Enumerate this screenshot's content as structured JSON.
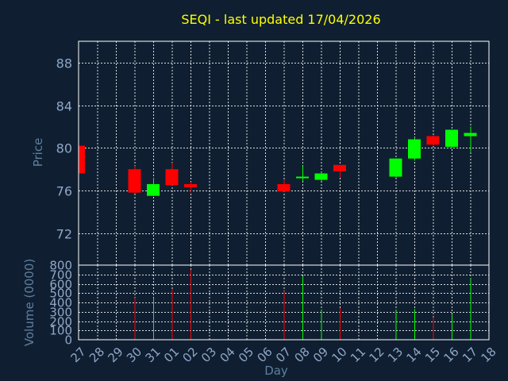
{
  "chart_data": {
    "type": "candlestick",
    "title": "SEQI - last updated 17/04/2026",
    "xlabel": "Day",
    "ylabel": "Price",
    "volume_label": "Volume (0000)",
    "x_ticks": [
      "27",
      "28",
      "29",
      "30",
      "31",
      "01",
      "02",
      "03",
      "04",
      "05",
      "06",
      "07",
      "08",
      "09",
      "10",
      "11",
      "12",
      "13",
      "14",
      "15",
      "16",
      "17",
      "18"
    ],
    "price_ylim": [
      69,
      90
    ],
    "price_yticks": [
      72,
      76,
      80,
      84,
      88
    ],
    "volume_ylim": [
      0,
      800
    ],
    "volume_yticks": [
      0,
      100,
      200,
      300,
      400,
      500,
      600,
      700,
      800
    ],
    "grid": true,
    "colors": {
      "up": "#00ff00",
      "down": "#ff0000",
      "background": "#0f1f31",
      "title": "#ffff00"
    },
    "candles": [
      {
        "day": "27",
        "open": 80.2,
        "high": 80.2,
        "low": 77.6,
        "close": 77.6,
        "volume": 0
      },
      {
        "day": "30",
        "open": 78.0,
        "high": 78.3,
        "low": 75.7,
        "close": 75.8,
        "volume": 450
      },
      {
        "day": "31",
        "open": 75.5,
        "high": 77.2,
        "low": 75.5,
        "close": 76.6,
        "volume": 450
      },
      {
        "day": "01",
        "open": 78.0,
        "high": 78.6,
        "low": 76.5,
        "close": 76.5,
        "volume": 540
      },
      {
        "day": "02",
        "open": 76.6,
        "high": 76.8,
        "low": 75.8,
        "close": 76.3,
        "volume": 750
      },
      {
        "day": "07",
        "open": 76.6,
        "high": 77.0,
        "low": 75.9,
        "close": 75.9,
        "volume": 520
      },
      {
        "day": "08",
        "open": 77.2,
        "high": 78.3,
        "low": 76.9,
        "close": 77.3,
        "volume": 680
      },
      {
        "day": "09",
        "open": 77.0,
        "high": 77.7,
        "low": 76.9,
        "close": 77.6,
        "volume": 320
      },
      {
        "day": "10",
        "open": 78.4,
        "high": 78.4,
        "low": 77.2,
        "close": 77.8,
        "volume": 340
      },
      {
        "day": "13",
        "open": 77.3,
        "high": 79.0,
        "low": 77.2,
        "close": 79.0,
        "volume": 320
      },
      {
        "day": "14",
        "open": 79.0,
        "high": 81.0,
        "low": 78.8,
        "close": 80.8,
        "volume": 330
      },
      {
        "day": "15",
        "open": 81.1,
        "high": 81.2,
        "low": 80.2,
        "close": 80.3,
        "volume": 240
      },
      {
        "day": "16",
        "open": 80.1,
        "high": 81.7,
        "low": 80.0,
        "close": 81.7,
        "volume": 270
      },
      {
        "day": "17",
        "open": 81.1,
        "high": 82.0,
        "low": 79.6,
        "close": 81.4,
        "volume": 660
      }
    ]
  }
}
